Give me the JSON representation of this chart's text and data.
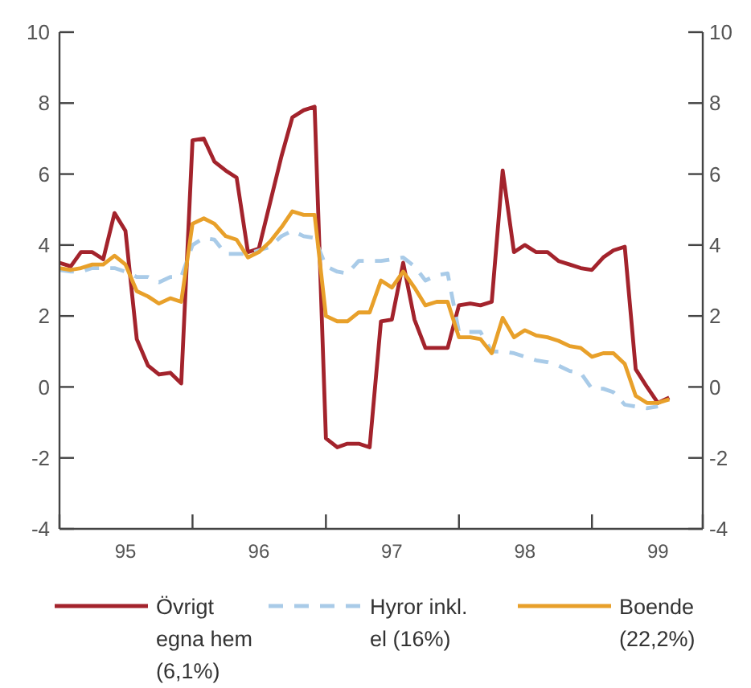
{
  "chart_data": {
    "type": "line",
    "x": [
      "1995-01",
      "1995-02",
      "1995-03",
      "1995-04",
      "1995-05",
      "1995-06",
      "1995-07",
      "1995-08",
      "1995-09",
      "1995-10",
      "1995-11",
      "1995-12",
      "1996-01",
      "1996-02",
      "1996-03",
      "1996-04",
      "1996-05",
      "1996-06",
      "1996-07",
      "1996-08",
      "1996-09",
      "1996-10",
      "1996-11",
      "1996-12",
      "1997-01",
      "1997-02",
      "1997-03",
      "1997-04",
      "1997-05",
      "1997-06",
      "1997-07",
      "1997-08",
      "1997-09",
      "1997-10",
      "1997-11",
      "1997-12",
      "1998-01",
      "1998-02",
      "1998-03",
      "1998-04",
      "1998-05",
      "1998-06",
      "1998-07",
      "1998-08",
      "1998-09",
      "1998-10",
      "1998-11",
      "1998-12",
      "1999-01",
      "1999-02",
      "1999-03",
      "1999-04",
      "1999-05",
      "1999-06",
      "1999-07",
      "1999-08"
    ],
    "series": [
      {
        "name": "Övrigt egna hem (6,1%)",
        "color": "#a3232c",
        "line_style": "solid",
        "values": [
          3.5,
          3.4,
          3.8,
          3.8,
          3.6,
          4.9,
          4.4,
          1.35,
          0.6,
          0.35,
          0.4,
          0.1,
          6.95,
          7.0,
          6.35,
          6.1,
          5.9,
          3.8,
          3.9,
          5.2,
          6.5,
          7.6,
          7.8,
          7.9,
          -1.45,
          -1.7,
          -1.6,
          -1.6,
          -1.7,
          1.85,
          1.9,
          3.5,
          1.9,
          1.1,
          1.1,
          1.1,
          2.3,
          2.35,
          2.3,
          2.4,
          6.1,
          3.8,
          4.0,
          3.8,
          3.8,
          3.55,
          3.45,
          3.35,
          3.3,
          3.65,
          3.85,
          3.95,
          0.5,
          0.0,
          -0.45,
          -0.3
        ]
      },
      {
        "name": "Hyror inkl. el (16%)",
        "color": "#a9cbe8",
        "line_style": "dashed",
        "values": [
          3.3,
          3.25,
          3.25,
          3.35,
          3.35,
          3.35,
          3.25,
          3.1,
          3.1,
          2.95,
          3.1,
          3.1,
          4.0,
          4.2,
          4.15,
          3.75,
          3.75,
          3.75,
          3.85,
          3.95,
          4.25,
          4.4,
          4.25,
          4.2,
          3.4,
          3.25,
          3.2,
          3.55,
          3.55,
          3.55,
          3.6,
          3.65,
          3.4,
          3.0,
          3.15,
          3.2,
          1.55,
          1.55,
          1.55,
          1.0,
          1.0,
          0.95,
          0.85,
          0.75,
          0.7,
          0.6,
          0.45,
          0.4,
          -0.05,
          -0.05,
          -0.15,
          -0.5,
          -0.55,
          -0.6,
          -0.55,
          null
        ]
      },
      {
        "name": "Boende (22,2%)",
        "color": "#e8a02a",
        "line_style": "solid",
        "values": [
          3.35,
          3.3,
          3.35,
          3.45,
          3.45,
          3.7,
          3.45,
          2.7,
          2.55,
          2.35,
          2.5,
          2.4,
          4.6,
          4.75,
          4.6,
          4.25,
          4.15,
          3.65,
          3.8,
          4.1,
          4.5,
          4.95,
          4.85,
          4.85,
          2.0,
          1.85,
          1.85,
          2.1,
          2.1,
          3.0,
          2.8,
          3.25,
          2.8,
          2.3,
          2.4,
          2.4,
          1.4,
          1.4,
          1.35,
          0.95,
          1.95,
          1.4,
          1.6,
          1.45,
          1.4,
          1.3,
          1.15,
          1.1,
          0.85,
          0.95,
          0.95,
          0.65,
          -0.25,
          -0.45,
          -0.45,
          -0.35
        ]
      }
    ],
    "xlim": [
      "1995-01",
      "1999-11"
    ],
    "xticks": [
      {
        "value": "1995-07",
        "label": "95"
      },
      {
        "value": "1996-01",
        "label": null
      },
      {
        "value": "1996-07",
        "label": "96"
      },
      {
        "value": "1997-01",
        "label": null
      },
      {
        "value": "1997-07",
        "label": "97"
      },
      {
        "value": "1998-01",
        "label": null
      },
      {
        "value": "1998-07",
        "label": "98"
      },
      {
        "value": "1999-01",
        "label": null
      },
      {
        "value": "1999-07",
        "label": "99"
      }
    ],
    "ylim": [
      -4,
      10
    ],
    "yticks": [
      -4,
      -2,
      0,
      2,
      4,
      6,
      8,
      10
    ],
    "y2lim": [
      -4,
      10
    ],
    "y2ticks": [
      -4,
      -2,
      0,
      2,
      4,
      6,
      8,
      10
    ],
    "grid": false,
    "legend": "bottom"
  }
}
